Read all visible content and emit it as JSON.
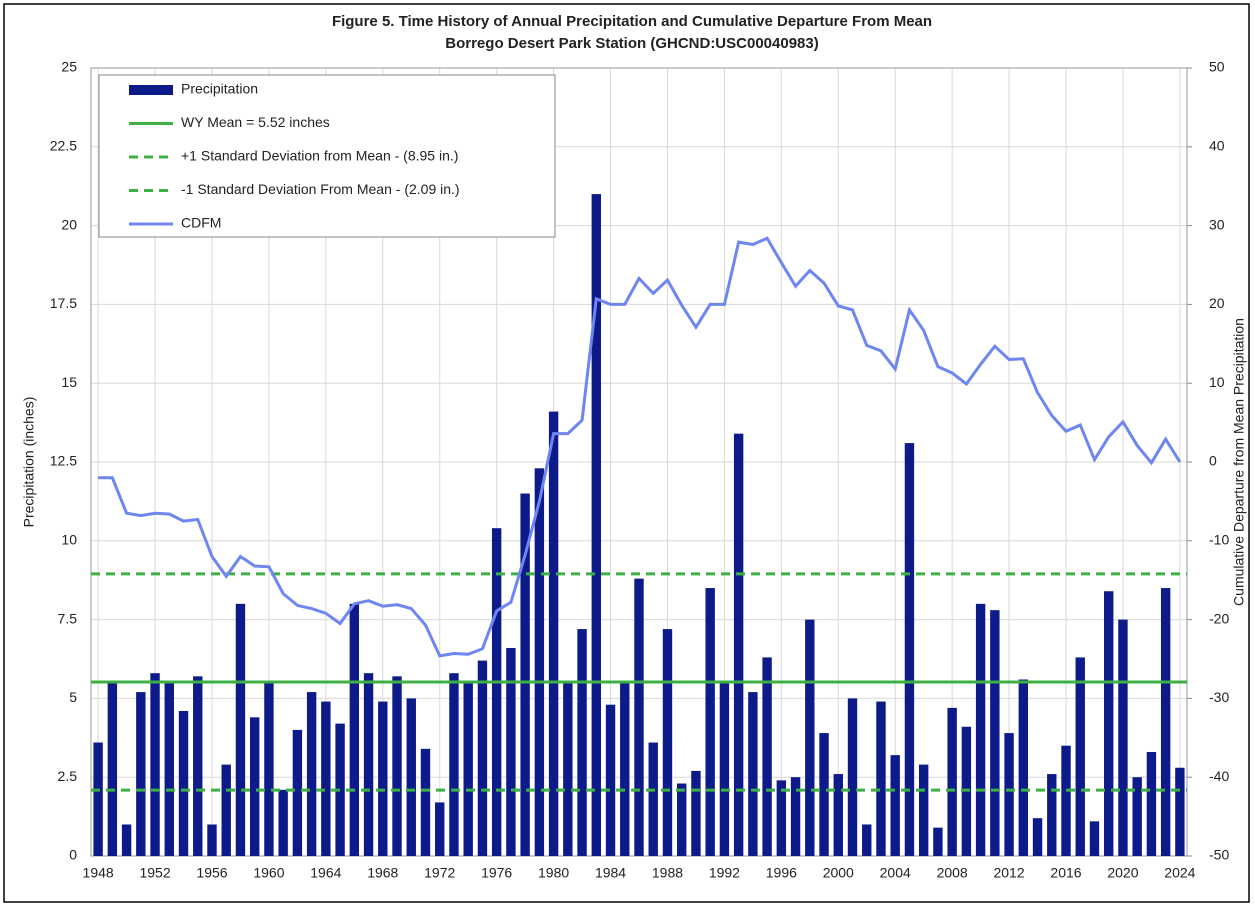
{
  "chart_data": {
    "type": "bar",
    "title": "Figure 5. Time History of Annual Precipitation and Cumulative Departure From Mean",
    "subtitle": "Borrego Desert Park Station (GHCND:USC00040983)",
    "ylabel": "Precipitation (inches)",
    "y2label": "Cumulative Departure from Mean Precipitation",
    "x": [
      1948,
      1949,
      1950,
      1951,
      1952,
      1953,
      1954,
      1955,
      1956,
      1957,
      1958,
      1959,
      1960,
      1961,
      1962,
      1963,
      1964,
      1965,
      1966,
      1967,
      1968,
      1969,
      1970,
      1971,
      1972,
      1973,
      1974,
      1975,
      1976,
      1977,
      1978,
      1979,
      1980,
      1981,
      1982,
      1983,
      1984,
      1985,
      1986,
      1987,
      1988,
      1989,
      1990,
      1991,
      1992,
      1993,
      1994,
      1995,
      1996,
      1997,
      1998,
      1999,
      2000,
      2001,
      2002,
      2003,
      2004,
      2005,
      2006,
      2007,
      2008,
      2009,
      2010,
      2011,
      2012,
      2013,
      2014,
      2015,
      2016,
      2017,
      2018,
      2019,
      2020,
      2021,
      2022,
      2023,
      2024
    ],
    "series": [
      {
        "name": "Precipitation",
        "type": "bar",
        "color": "#0d1b8a",
        "values": [
          3.6,
          5.5,
          1.0,
          5.2,
          5.8,
          5.5,
          4.6,
          5.7,
          1.0,
          2.9,
          8.0,
          4.4,
          5.5,
          2.1,
          4.0,
          5.2,
          4.9,
          4.2,
          8.0,
          5.8,
          4.9,
          5.7,
          5.0,
          3.4,
          1.7,
          5.8,
          5.5,
          6.2,
          10.4,
          6.6,
          11.5,
          12.3,
          14.1,
          5.5,
          7.2,
          21.0,
          4.8,
          5.5,
          8.8,
          3.6,
          7.2,
          2.3,
          2.7,
          8.5,
          5.5,
          13.4,
          5.2,
          6.3,
          2.4,
          2.5,
          7.5,
          3.9,
          2.6,
          5.0,
          1.0,
          4.9,
          3.2,
          13.1,
          2.9,
          0.9,
          4.7,
          4.1,
          8.0,
          7.8,
          3.9,
          5.6,
          1.2,
          2.6,
          3.5,
          6.3,
          1.1,
          8.4,
          7.5,
          2.5,
          3.3,
          8.5,
          2.8
        ]
      },
      {
        "name": "CDFM",
        "type": "line",
        "axis": "y2",
        "color": "#6d86f2",
        "values": [
          -2,
          -2,
          -6.5,
          -6.8,
          -6.5,
          -6.6,
          -7.5,
          -7.3,
          -12,
          -14.5,
          -12,
          -13.2,
          -13.3,
          -16.7,
          -18.2,
          -18.6,
          -19.2,
          -20.5,
          -18,
          -17.6,
          -18.3,
          -18.1,
          -18.6,
          -20.7,
          -24.6,
          -24.3,
          -24.4,
          -23.7,
          -18.9,
          -17.8,
          -11.8,
          -5,
          3.6,
          3.6,
          5.3,
          20.7,
          20,
          20,
          23.3,
          21.4,
          23.1,
          19.9,
          17.1,
          20,
          20,
          27.9,
          27.6,
          28.4,
          25.3,
          22.3,
          24.3,
          22.7,
          19.8,
          19.3,
          14.8,
          14.1,
          11.8,
          19.3,
          16.7,
          12.1,
          11.3,
          9.9,
          12.4,
          14.7,
          13.0,
          13.1,
          8.8,
          5.9,
          3.9,
          4.7,
          0.3,
          3.2,
          5.1,
          2.1,
          -0.1,
          2.9,
          0
        ]
      }
    ],
    "reference_lines": [
      {
        "name": "WY Mean = 5.52 inches",
        "value": 5.52,
        "color": "#3cb043",
        "dashed": false
      },
      {
        "name": "+1 Standard Deviation from Mean - (8.95 in.)",
        "value": 8.95,
        "color": "#3cb043",
        "dashed": true
      },
      {
        "name": "-1 Standard Deviation From Mean - (2.09 in.)",
        "value": 2.09,
        "color": "#3cb043",
        "dashed": true
      }
    ],
    "xlim": [
      1947.5,
      2024.5
    ],
    "xticks": [
      1948,
      1952,
      1956,
      1960,
      1964,
      1968,
      1972,
      1976,
      1980,
      1984,
      1988,
      1992,
      1996,
      2000,
      2004,
      2008,
      2012,
      2016,
      2020,
      2024
    ],
    "ylim": [
      0,
      25
    ],
    "yticks": [
      0,
      2.5,
      5,
      7.5,
      10,
      12.5,
      15,
      17.5,
      20,
      22.5,
      25
    ],
    "y2lim": [
      -50,
      50
    ],
    "y2ticks": [
      -50,
      -40,
      -30,
      -20,
      -10,
      0,
      10,
      20,
      30,
      40,
      50
    ],
    "grid": true,
    "legend": "upper left"
  }
}
